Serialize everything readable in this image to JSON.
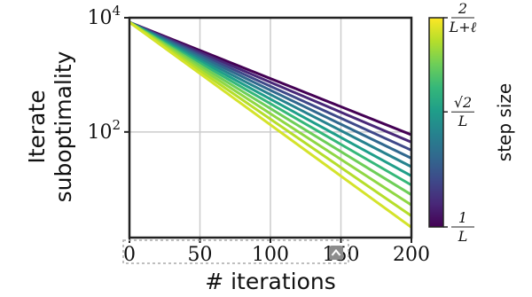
{
  "chart_data": {
    "type": "line",
    "xlabel": "# iterations",
    "ylabel_line1": "Iterate",
    "ylabel_line2": "suboptimality",
    "yscale": "log",
    "xlim": [
      0,
      200
    ],
    "ylim_log10": [
      0.15,
      4.0
    ],
    "x_ticks": [
      "0",
      "50",
      "100",
      "150",
      "200"
    ],
    "y_ticks": [
      {
        "base": "10",
        "exp": "4",
        "log10": 4
      },
      {
        "base": "10",
        "exp": "2",
        "log10": 2
      }
    ],
    "grid": true,
    "x": [
      0,
      200
    ],
    "series": [
      {
        "values_log10": [
          3.92,
          1.95
        ]
      },
      {
        "values_log10": [
          3.92,
          1.82
        ]
      },
      {
        "values_log10": [
          3.92,
          1.68
        ]
      },
      {
        "values_log10": [
          3.92,
          1.54
        ]
      },
      {
        "values_log10": [
          3.92,
          1.39
        ]
      },
      {
        "values_log10": [
          3.92,
          1.23
        ]
      },
      {
        "values_log10": [
          3.92,
          1.07
        ]
      },
      {
        "values_log10": [
          3.92,
          0.9
        ]
      },
      {
        "values_log10": [
          3.92,
          0.72
        ]
      },
      {
        "values_log10": [
          3.92,
          0.53
        ]
      },
      {
        "values_log10": [
          3.92,
          0.33
        ]
      }
    ],
    "series_colors": [
      "#440154",
      "#482878",
      "#3e4989",
      "#31688e",
      "#26828e",
      "#1f9e89",
      "#35b779",
      "#6ece58",
      "#8fd744",
      "#b5de2b",
      "#d4e32b"
    ],
    "colorbar": {
      "label": "step size",
      "colormap": "viridis",
      "colors": [
        "#440154",
        "#482878",
        "#3e4989",
        "#31688e",
        "#26828e",
        "#1f9e89",
        "#35b779",
        "#6ece58",
        "#b5de2b",
        "#fde725"
      ],
      "ticks": [
        {
          "num": "2",
          "den": "L+ℓ",
          "frac": 1.0
        },
        {
          "num": "√2",
          "den": "L",
          "frac": 0.55
        },
        {
          "num": "1",
          "den": "L",
          "frac": 0.0
        }
      ]
    }
  }
}
